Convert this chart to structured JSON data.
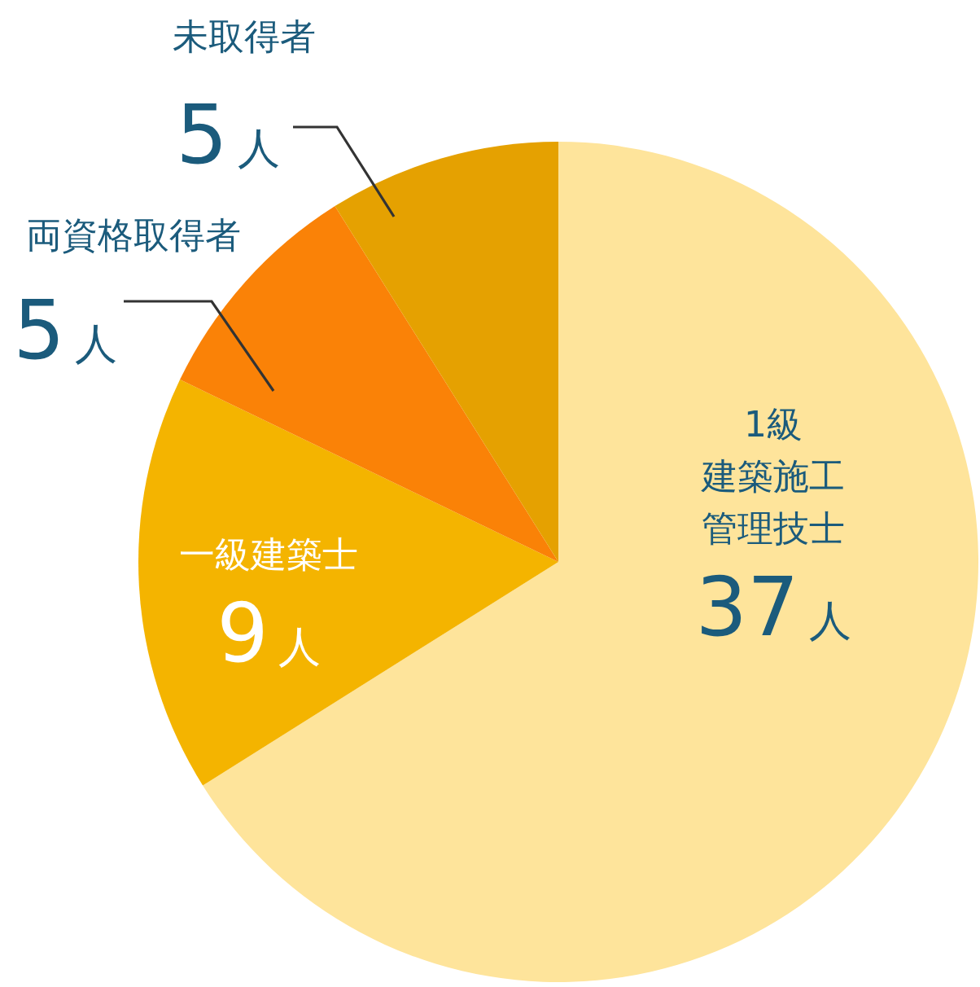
{
  "chart_data": {
    "type": "pie",
    "categories": [
      "1級建築施工管理技士",
      "一級建築士",
      "両資格取得者",
      "未取得者"
    ],
    "values": [
      37,
      9,
      5,
      5
    ],
    "colors": [
      "#fee49b",
      "#f4b400",
      "#fa8207",
      "#e5a101"
    ],
    "value_labels": [
      "37人",
      "9人",
      "5人",
      "5人"
    ]
  }
}
